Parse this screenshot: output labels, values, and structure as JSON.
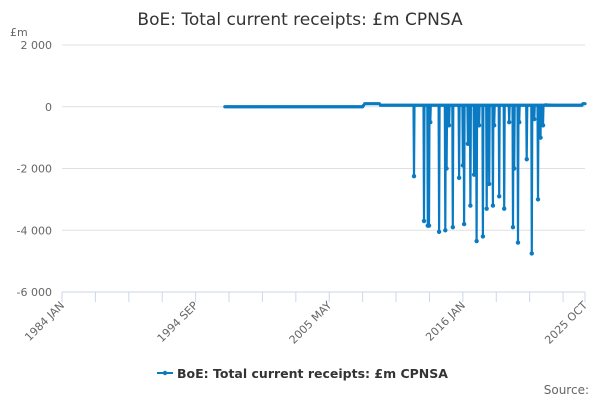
{
  "chart_data": {
    "type": "line",
    "title": "BoE: Total current receipts: £m CPNSA",
    "ylabel": "£m",
    "xlabel": "",
    "ylim": [
      -6000,
      2000
    ],
    "xlim": [
      "1984 JAN",
      "2025 OCT"
    ],
    "xlim_decimal": [
      1984.0,
      2025.75
    ],
    "yticks": [
      {
        "value": 2000,
        "label": "2 000"
      },
      {
        "value": 0,
        "label": "0"
      },
      {
        "value": -2000,
        "label": "-2 000"
      },
      {
        "value": -4000,
        "label": "-4 000"
      },
      {
        "value": -6000,
        "label": "-6 000"
      }
    ],
    "xticks": [
      {
        "value": 1984.0,
        "label": "1984 JAN"
      },
      {
        "value": 1994.667,
        "label": "1994 SEP"
      },
      {
        "value": 2005.333,
        "label": "2005 MAY"
      },
      {
        "value": 2016.0,
        "label": "2016 JAN"
      },
      {
        "value": 2025.75,
        "label": "2025 OCT"
      }
    ],
    "minor_tick_months": 32,
    "grid": true,
    "legend": {
      "placement": "bottom-center",
      "entries": [
        "BoE: Total current receipts: £m CPNSA"
      ]
    },
    "source_label": "Source:",
    "color": "#0a7bc2",
    "series": [
      {
        "name": "BoE: Total current receipts: £m CPNSA",
        "baseline_points": [
          [
            1997.0,
            0
          ],
          [
            2007.9,
            0
          ],
          [
            2008.2,
            100
          ],
          [
            2009.3,
            100
          ],
          [
            2009.5,
            50
          ],
          [
            2012.0,
            50
          ],
          [
            2022.6,
            80
          ],
          [
            2023.5,
            50
          ],
          [
            2025.3,
            50
          ],
          [
            2025.75,
            100
          ]
        ],
        "spike_baseline": 50,
        "spikes": [
          [
            2012.1,
            -2250
          ],
          [
            2012.9,
            -3700
          ],
          [
            2013.2,
            -3850
          ],
          [
            2013.3,
            -3850
          ],
          [
            2013.4,
            -500
          ],
          [
            2014.1,
            -4050
          ],
          [
            2014.6,
            -4000
          ],
          [
            2014.7,
            -2000
          ],
          [
            2014.9,
            -600
          ],
          [
            2015.2,
            -3900
          ],
          [
            2015.7,
            -2300
          ],
          [
            2016.0,
            -1900
          ],
          [
            2016.1,
            -3800
          ],
          [
            2016.4,
            -1200
          ],
          [
            2016.6,
            -3200
          ],
          [
            2016.9,
            -2200
          ],
          [
            2017.1,
            -4350
          ],
          [
            2017.3,
            -600
          ],
          [
            2017.6,
            -4200
          ],
          [
            2017.9,
            -3300
          ],
          [
            2018.1,
            -2500
          ],
          [
            2018.4,
            -3200
          ],
          [
            2018.5,
            -600
          ],
          [
            2018.9,
            -2900
          ],
          [
            2019.3,
            -3300
          ],
          [
            2019.7,
            -500
          ],
          [
            2020.0,
            -3900
          ],
          [
            2020.1,
            -2000
          ],
          [
            2020.4,
            -4400
          ],
          [
            2020.5,
            -500
          ],
          [
            2021.1,
            -1700
          ],
          [
            2021.5,
            -4750
          ],
          [
            2021.7,
            -400
          ],
          [
            2022.0,
            -3000
          ],
          [
            2022.2,
            -1000
          ],
          [
            2022.4,
            -600
          ]
        ]
      }
    ]
  }
}
